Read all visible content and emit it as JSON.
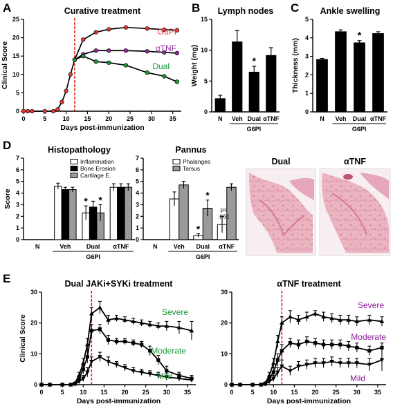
{
  "panel_letters": [
    "A",
    "B",
    "C",
    "D",
    "E"
  ],
  "chart_data": [
    {
      "id": "A",
      "type": "line",
      "title": "Curative treatment",
      "xlabel": "Days post-immunization",
      "ylabel": "Clinical Score",
      "xlim": [
        0,
        37
      ],
      "ylim": [
        0,
        25
      ],
      "xticks": [
        0,
        5,
        10,
        15,
        20,
        25,
        30,
        35
      ],
      "yticks": [
        0,
        5,
        10,
        15,
        20,
        25
      ],
      "treatment_day": 12,
      "series": [
        {
          "name": "G6PI",
          "color": "#e63b3b",
          "x": [
            0,
            1,
            2,
            5,
            7,
            8,
            9,
            10,
            11,
            12,
            14,
            17,
            20,
            24,
            29,
            33,
            36
          ],
          "y": [
            0,
            0,
            0,
            0,
            0,
            0.5,
            2.5,
            5.5,
            10,
            14,
            19.5,
            21.5,
            22.3,
            22.8,
            22.5,
            22.2,
            22
          ]
        },
        {
          "name": "αTNF",
          "color": "#9a2aa0",
          "x": [
            12,
            14,
            17,
            20,
            24,
            29,
            33,
            36
          ],
          "y": [
            14,
            15.5,
            16.5,
            16.5,
            16.5,
            16.3,
            16,
            15.8
          ]
        },
        {
          "name": "Dual",
          "color": "#1a9a3a",
          "x": [
            12,
            14,
            17,
            20,
            24,
            29,
            33,
            36
          ],
          "y": [
            14,
            15,
            13.5,
            13.2,
            12.5,
            10.5,
            9.5,
            8
          ]
        }
      ]
    },
    {
      "id": "B",
      "type": "bar",
      "title": "Lymph nodes",
      "ylabel": "Weight (mg)",
      "ylim": [
        0,
        15
      ],
      "yticks": [
        0,
        5,
        10,
        15
      ],
      "categories": [
        "N",
        "Veh",
        "Dual",
        "αTNF"
      ],
      "values": [
        2.2,
        11.4,
        6.5,
        9.2
      ],
      "errors": [
        0.5,
        1.8,
        0.9,
        1.2
      ],
      "stars": [
        "",
        "",
        "*",
        ""
      ],
      "group_label": "G6PI"
    },
    {
      "id": "C",
      "type": "bar",
      "title": "Ankle swelling",
      "ylabel": "Thickness (mm)",
      "ylim": [
        0,
        5
      ],
      "yticks": [
        0,
        1,
        2,
        3,
        4,
        5
      ],
      "categories": [
        "N",
        "Veh",
        "Dual",
        "αTNF"
      ],
      "values": [
        2.85,
        4.35,
        3.75,
        4.25
      ],
      "errors": [
        0.04,
        0.08,
        0.1,
        0.08
      ],
      "stars": [
        "",
        "",
        "*",
        ""
      ],
      "group_label": "G6PI"
    },
    {
      "id": "D1",
      "type": "bar",
      "title": "Histopathology",
      "ylabel": "Score",
      "ylim": [
        0,
        7
      ],
      "yticks": [
        0,
        1,
        2,
        3,
        4,
        5,
        6,
        7
      ],
      "categories": [
        "N",
        "Veh",
        "Dual",
        "αTNF"
      ],
      "group_label": "G6PI",
      "legend": [
        "Inflammation",
        "Bone Erosion",
        "Cartilage E."
      ],
      "series": [
        {
          "name": "Inflammation",
          "color": "#ffffff",
          "values": [
            0,
            4.6,
            2.3,
            4.5
          ],
          "errors": [
            0,
            0.25,
            0.6,
            0.3
          ]
        },
        {
          "name": "Bone Erosion",
          "color": "#000000",
          "values": [
            0,
            4.3,
            2.8,
            4.5
          ],
          "errors": [
            0,
            0.2,
            0.5,
            0.3
          ]
        },
        {
          "name": "Cartilage E.",
          "color": "#9a9a9a",
          "values": [
            0,
            4.3,
            2.3,
            4.5
          ],
          "errors": [
            0,
            0.2,
            0.7,
            0.3
          ]
        }
      ],
      "stars": [
        [
          "",
          "",
          ""
        ],
        [
          "",
          "",
          ""
        ],
        [
          "*",
          "",
          "*"
        ],
        [
          "",
          "",
          ""
        ]
      ]
    },
    {
      "id": "D2",
      "type": "bar",
      "title": "Pannus",
      "ylabel": "",
      "ylim": [
        0,
        7
      ],
      "yticks": [
        0,
        1,
        2,
        3,
        4,
        5,
        6,
        7
      ],
      "categories": [
        "N",
        "Veh",
        "Dual",
        "αTNF"
      ],
      "group_label": "G6PI",
      "legend": [
        "Phalanges",
        "Tarsus"
      ],
      "series": [
        {
          "name": "Phalanges",
          "color": "#ffffff",
          "values": [
            0,
            3.5,
            0.35,
            1.3
          ],
          "errors": [
            0,
            0.6,
            0.15,
            0.7
          ]
        },
        {
          "name": "Tarsus",
          "color": "#9a9a9a",
          "values": [
            0,
            4.7,
            2.7,
            4.5
          ],
          "errors": [
            0,
            0.3,
            0.7,
            0.3
          ]
        }
      ],
      "stars": [
        [
          "",
          ""
        ],
        [
          "",
          ""
        ],
        [
          "*",
          "*"
        ],
        [
          "",
          ""
        ]
      ],
      "annotation": [
        "p=",
        ".061"
      ]
    },
    {
      "id": "E1",
      "type": "line",
      "title": "Dual JAKi+SYKi treatment",
      "xlabel": "Days post-immunization",
      "ylabel": "Clinical Score",
      "xlim": [
        0,
        37
      ],
      "ylim": [
        0,
        30
      ],
      "xticks": [
        0,
        5,
        10,
        15,
        20,
        25,
        30,
        35
      ],
      "yticks": [
        0,
        10,
        20,
        30
      ],
      "treatment_day": 12,
      "series": [
        {
          "name": "Severe",
          "color": "#1a9a3a",
          "x": [
            0,
            2,
            5,
            7,
            8,
            9,
            10,
            11,
            12,
            14,
            16,
            18,
            20,
            22,
            24,
            26,
            28,
            30,
            33,
            36
          ],
          "y": [
            0,
            0,
            0,
            0,
            0.5,
            3,
            7,
            13,
            23,
            25,
            21,
            21.5,
            21,
            20.5,
            20,
            19.5,
            19,
            19,
            18.5,
            17.5
          ],
          "err": [
            0,
            0,
            0,
            0,
            0.3,
            1,
            1.5,
            2,
            2,
            2,
            1.5,
            1,
            1,
            1,
            1,
            1,
            1,
            1.5,
            2,
            3
          ]
        },
        {
          "name": "Moderate",
          "color": "#1a9a3a",
          "x": [
            0,
            2,
            5,
            7,
            8,
            9,
            10,
            11,
            12,
            14,
            16,
            18,
            20,
            22,
            24,
            26,
            28,
            30,
            33,
            36
          ],
          "y": [
            0,
            0,
            0,
            0,
            0.3,
            2,
            5,
            9,
            17.5,
            18,
            14.5,
            14,
            14,
            13.5,
            13,
            11,
            8,
            4.5,
            3,
            2
          ],
          "err": [
            0,
            0,
            0,
            0,
            0.3,
            0.8,
            1.5,
            2,
            2,
            1.5,
            1.5,
            1,
            1,
            1,
            1,
            1.5,
            1.5,
            1.5,
            1,
            1
          ]
        },
        {
          "name": "Mild",
          "color": "#1a9a3a",
          "x": [
            0,
            2,
            5,
            7,
            8,
            9,
            10,
            11,
            12,
            14,
            16,
            18,
            20,
            22,
            24,
            26,
            28,
            30,
            33,
            36
          ],
          "y": [
            0,
            0,
            0,
            0,
            0.2,
            1,
            2,
            4,
            7.5,
            9,
            7.5,
            6.5,
            5.5,
            4.5,
            4,
            3.5,
            3,
            2.5,
            2,
            1.5
          ],
          "err": [
            0,
            0,
            0,
            0,
            0.2,
            0.5,
            1,
            1.5,
            1.5,
            1.5,
            1.5,
            1,
            1,
            1,
            1,
            1,
            1,
            1,
            0.8,
            0.5
          ]
        }
      ]
    },
    {
      "id": "E2",
      "type": "line",
      "title": "αTNF treatment",
      "xlabel": "Days post-immunization",
      "ylabel": "",
      "xlim": [
        0,
        37
      ],
      "ylim": [
        0,
        30
      ],
      "xticks": [
        0,
        5,
        10,
        15,
        20,
        25,
        30,
        35
      ],
      "yticks": [
        0,
        10,
        20,
        30
      ],
      "treatment_day": 12,
      "series": [
        {
          "name": "Severe",
          "color": "#8b1a9a",
          "x": [
            0,
            2,
            5,
            7,
            8,
            9,
            10,
            11,
            12,
            14,
            16,
            18,
            20,
            22,
            24,
            26,
            28,
            30,
            33,
            36
          ],
          "y": [
            0,
            0,
            0,
            0,
            0.5,
            3,
            7,
            14,
            20,
            22,
            21,
            22,
            23,
            22,
            21.5,
            21,
            21,
            20.5,
            21,
            20.5
          ],
          "err": [
            0,
            0,
            0,
            0,
            0.3,
            1,
            1.5,
            2,
            2,
            2,
            1.5,
            1.5,
            1,
            1.5,
            1.5,
            1.5,
            1.5,
            1.5,
            1.5,
            1.5
          ]
        },
        {
          "name": "Moderate",
          "color": "#8b1a9a",
          "x": [
            0,
            2,
            5,
            7,
            8,
            9,
            10,
            11,
            12,
            14,
            16,
            18,
            20,
            22,
            24,
            26,
            28,
            30,
            33,
            36
          ],
          "y": [
            0,
            0,
            0,
            0,
            0.3,
            2,
            4,
            8,
            11,
            13.5,
            13,
            14,
            13.5,
            13,
            13,
            13,
            12.5,
            12,
            11,
            12
          ],
          "err": [
            0,
            0,
            0,
            0,
            0.3,
            1,
            1.5,
            2,
            2,
            1.5,
            1.5,
            1.5,
            1.5,
            1.5,
            1.5,
            1.5,
            1.5,
            1.5,
            1.5,
            1.5
          ]
        },
        {
          "name": "Mild",
          "color": "#8b1a9a",
          "x": [
            0,
            2,
            5,
            7,
            8,
            9,
            10,
            11,
            12,
            14,
            16,
            18,
            20,
            22,
            24,
            26,
            28,
            30,
            33,
            36
          ],
          "y": [
            0,
            0,
            0,
            0,
            0.2,
            1,
            2,
            4,
            6,
            4.5,
            6,
            6.5,
            7,
            7,
            7.5,
            7,
            7,
            7,
            6.5,
            8
          ],
          "err": [
            0,
            0,
            0,
            0,
            0.2,
            0.5,
            1,
            1.5,
            2,
            1.5,
            1.5,
            1.5,
            1.5,
            1.5,
            1.5,
            1.5,
            1.5,
            1.5,
            2,
            3.5
          ]
        }
      ]
    }
  ],
  "histology": {
    "labels": [
      "Dual",
      "αTNF"
    ],
    "tissue_color": "#e8a6b6",
    "background_color": "#f6eef0",
    "stain_dark": "#c9637e"
  }
}
